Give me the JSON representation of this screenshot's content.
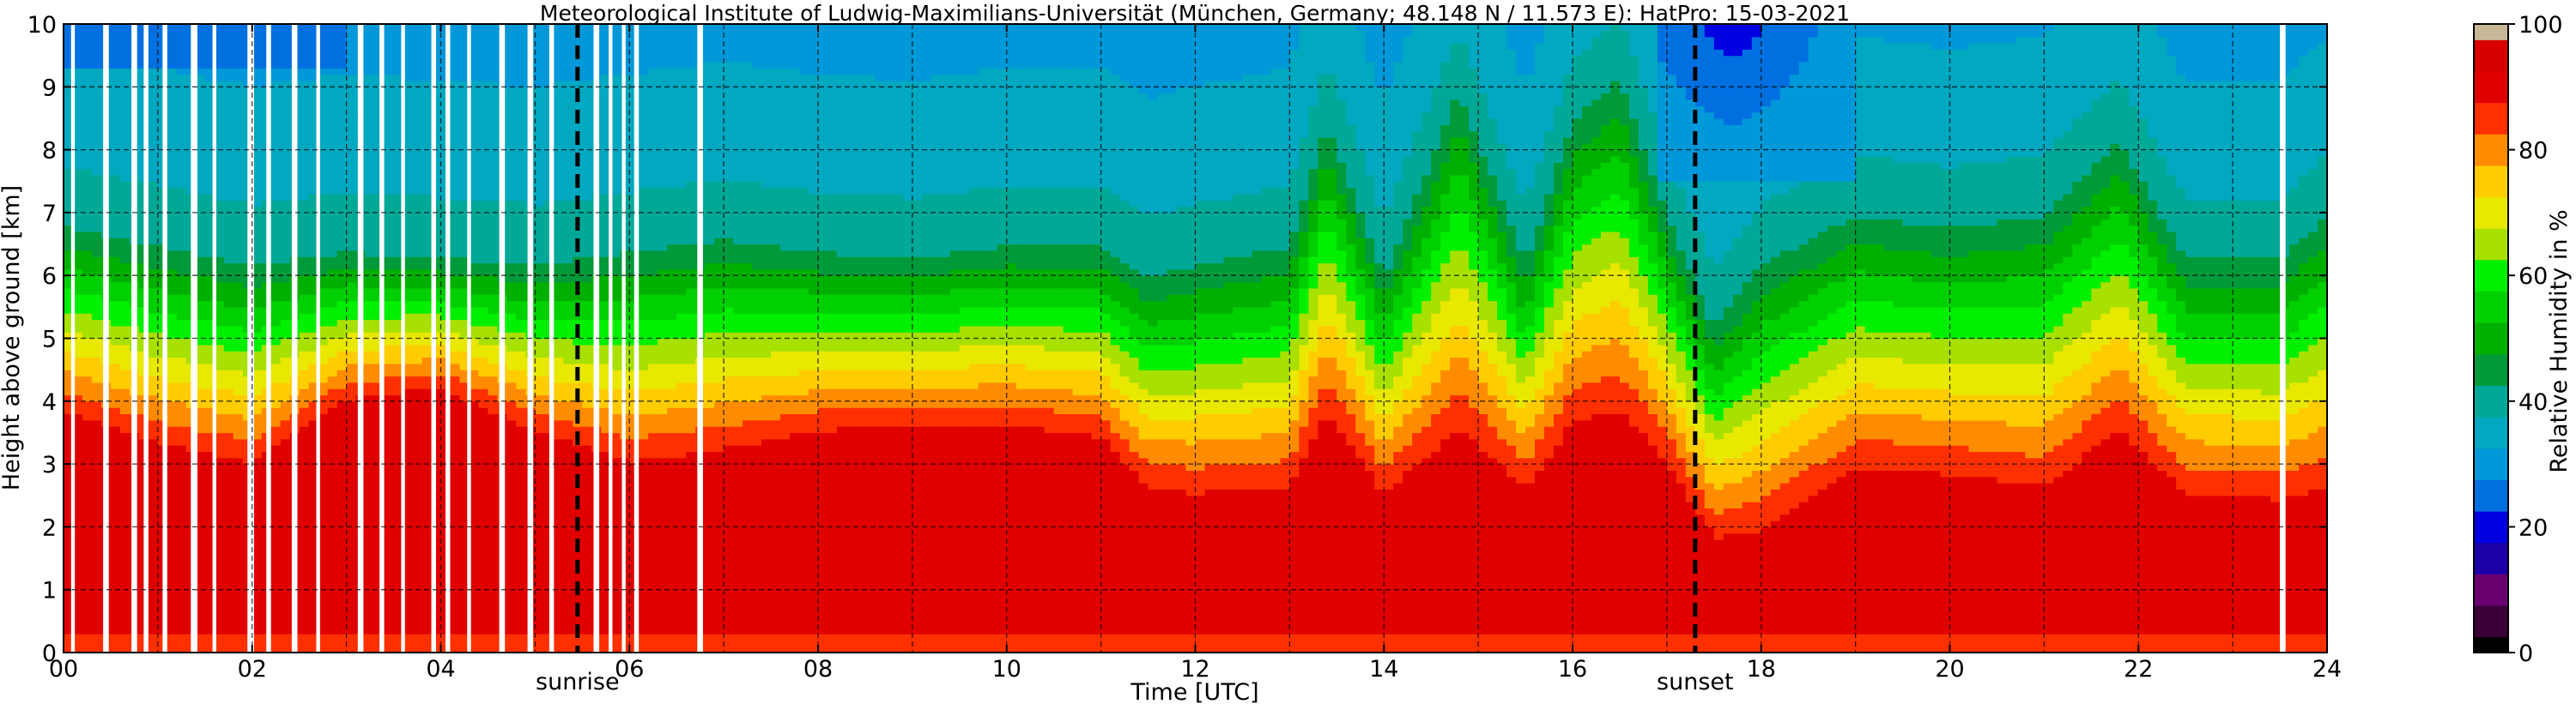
{
  "chart_data": {
    "type": "heatmap",
    "title": "Meteorological Institute of Ludwig-Maximilians-Universität (München, Germany; 48.148 N / 11.573 E):    HatPro: 15-03-2021",
    "xlabel": "Time [UTC]",
    "ylabel": "Height above ground [km]",
    "xlim": [
      0,
      24
    ],
    "ylim": [
      0,
      10
    ],
    "x_ticks": [
      "00",
      "02",
      "04",
      "06",
      "08",
      "10",
      "12",
      "14",
      "16",
      "18",
      "20",
      "22",
      "24"
    ],
    "y_ticks": [
      "0",
      "1",
      "2",
      "3",
      "4",
      "5",
      "6",
      "7",
      "8",
      "9",
      "10"
    ],
    "grid": true,
    "colorbar": {
      "label": "Relative Humidity in %",
      "min": 0,
      "max": 100,
      "ticks": [
        "0",
        "20",
        "40",
        "60",
        "80",
        "100"
      ],
      "colors": [
        {
          "from": 0,
          "to": 2.5,
          "color": "#000000"
        },
        {
          "from": 2.5,
          "to": 7.5,
          "color": "#3a0038"
        },
        {
          "from": 7.5,
          "to": 12.5,
          "color": "#6a0070"
        },
        {
          "from": 12.5,
          "to": 17.5,
          "color": "#1e00a8"
        },
        {
          "from": 17.5,
          "to": 22.5,
          "color": "#0000e0"
        },
        {
          "from": 22.5,
          "to": 27.5,
          "color": "#0070e0"
        },
        {
          "from": 27.5,
          "to": 32.5,
          "color": "#0098d8"
        },
        {
          "from": 32.5,
          "to": 37.5,
          "color": "#00a8c0"
        },
        {
          "from": 37.5,
          "to": 42.5,
          "color": "#00a898"
        },
        {
          "from": 42.5,
          "to": 47.5,
          "color": "#009a3a"
        },
        {
          "from": 47.5,
          "to": 52.5,
          "color": "#00b000"
        },
        {
          "from": 52.5,
          "to": 57.5,
          "color": "#00d000"
        },
        {
          "from": 57.5,
          "to": 62.5,
          "color": "#00f000"
        },
        {
          "from": 62.5,
          "to": 67.5,
          "color": "#a8e000"
        },
        {
          "from": 67.5,
          "to": 72.5,
          "color": "#e8e800"
        },
        {
          "from": 72.5,
          "to": 77.5,
          "color": "#ffcc00"
        },
        {
          "from": 77.5,
          "to": 82.5,
          "color": "#ff8c00"
        },
        {
          "from": 82.5,
          "to": 87.5,
          "color": "#ff3000"
        },
        {
          "from": 87.5,
          "to": 92.5,
          "color": "#e00000"
        },
        {
          "from": 92.5,
          "to": 97.5,
          "color": "#d80000"
        },
        {
          "from": 97.5,
          "to": 100,
          "color": "#c8b898"
        }
      ]
    },
    "annotations": [
      {
        "text": "sunrise",
        "x": 5.45
      },
      {
        "text": "sunset",
        "x": 17.3
      }
    ],
    "missing_data_intervals": [
      [
        0.08,
        0.12
      ],
      [
        0.42,
        0.48
      ],
      [
        0.72,
        0.78
      ],
      [
        0.85,
        0.9
      ],
      [
        1.05,
        1.1
      ],
      [
        1.35,
        1.42
      ],
      [
        1.58,
        1.62
      ],
      [
        1.95,
        2.02
      ],
      [
        2.15,
        2.2
      ],
      [
        2.42,
        2.48
      ],
      [
        2.68,
        2.72
      ],
      [
        3.12,
        3.18
      ],
      [
        3.35,
        3.4
      ],
      [
        3.58,
        3.62
      ],
      [
        3.9,
        3.95
      ],
      [
        4.05,
        4.1
      ],
      [
        4.28,
        4.32
      ],
      [
        4.62,
        4.68
      ],
      [
        4.92,
        4.98
      ],
      [
        5.15,
        5.2
      ],
      [
        5.62,
        5.68
      ],
      [
        5.78,
        5.82
      ],
      [
        5.92,
        5.96
      ],
      [
        6.05,
        6.1
      ],
      [
        6.72,
        6.78
      ],
      [
        23.5,
        23.56
      ]
    ],
    "humidity_profile_series": [
      {
        "name": "",
        "time": [
          0,
          1,
          2,
          3,
          4,
          5,
          6,
          7,
          8,
          9,
          10,
          11,
          11.5,
          12,
          13,
          13.4,
          14,
          14.8,
          15.5,
          16,
          16.5,
          17,
          17.5,
          18,
          19,
          20,
          21,
          21.8,
          22.5,
          23.5,
          24
        ],
        "surface_moist_top_km": [
          3.8,
          3.3,
          3.0,
          4.0,
          4.2,
          3.5,
          3.0,
          3.2,
          3.5,
          3.6,
          3.6,
          3.4,
          2.6,
          2.5,
          2.6,
          3.8,
          2.5,
          3.5,
          2.6,
          3.6,
          3.8,
          3.0,
          1.8,
          1.9,
          2.9,
          2.8,
          2.6,
          3.5,
          2.5,
          2.4,
          2.6
        ],
        "dry_layer_base_km": [
          6.8,
          6.5,
          6.2,
          6.4,
          6.3,
          6.2,
          6.4,
          6.6,
          6.4,
          6.3,
          6.5,
          6.5,
          6.0,
          6.2,
          6.5,
          8.5,
          6.0,
          9.0,
          6.2,
          8.5,
          9.2,
          7.0,
          5.2,
          6.2,
          7.0,
          6.8,
          7.0,
          8.2,
          6.3,
          6.3,
          7.0
        ]
      }
    ]
  }
}
